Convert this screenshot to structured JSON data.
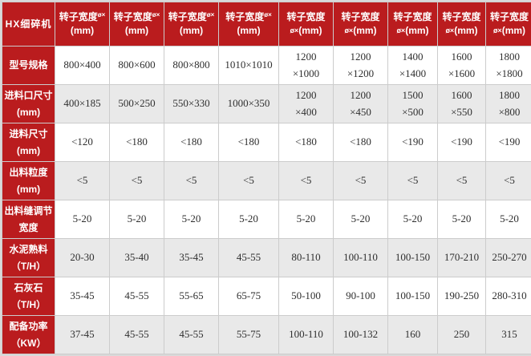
{
  "colors": {
    "header_red": "#ba1c1e",
    "header_text": "#ffffff",
    "row_base": "#ffffff",
    "row_alt": "#e9e9e9",
    "border": "#cccccc",
    "text": "#2f2f2f"
  },
  "table": {
    "corner_label": "HX细碎机",
    "columns": [
      {
        "label": "转子宽度",
        "small": "ø×",
        "unit": "(mm)",
        "variant": "inline"
      },
      {
        "label": "转子宽度",
        "small": "ø×",
        "unit": "(mm)",
        "variant": "inline"
      },
      {
        "label": "转子宽度",
        "small": "ø×",
        "unit": "(mm)",
        "variant": "inline"
      },
      {
        "label": "转子宽度",
        "small": "ø×",
        "unit": "(mm)",
        "variant": "inline"
      },
      {
        "label": "转子宽度",
        "small": "ø×",
        "unit": "(mm)",
        "variant": "stacked"
      },
      {
        "label": "转子宽度",
        "small": "ø×",
        "unit": "(mm)",
        "variant": "stacked"
      },
      {
        "label": "转子宽度",
        "small": "ø×",
        "unit": "(mm)",
        "variant": "stacked"
      },
      {
        "label": "转子宽度",
        "small": "ø×",
        "unit": "(mm)",
        "variant": "stacked"
      },
      {
        "label": "转子宽度",
        "small": "ø×",
        "unit": "(mm)",
        "variant": "stacked"
      }
    ],
    "rows": [
      {
        "label": "型号规格",
        "values": [
          "800×400",
          "800×600",
          "800×800",
          "1010×1010",
          "1200\n×1000",
          "1200\n×1200",
          "1400\n×1400",
          "1600\n×1600",
          "1800\n×1800"
        ]
      },
      {
        "label": "进料口尺寸\n(mm)",
        "values": [
          "400×185",
          "500×250",
          "550×330",
          "1000×350",
          "1200\n×400",
          "1200\n×450",
          "1500\n×500",
          "1600\n×550",
          "1800\n×800"
        ]
      },
      {
        "label": "进料尺寸\n(mm)",
        "values": [
          "<120",
          "<180",
          "<180",
          "<180",
          "<180",
          "<180",
          "<190",
          "<190",
          "<190"
        ]
      },
      {
        "label": "出料粒度\n(mm)",
        "values": [
          "<5",
          "<5",
          "<5",
          "<5",
          "<5",
          "<5",
          "<5",
          "<5",
          "<5"
        ]
      },
      {
        "label": "出料缝调节\n宽度",
        "values": [
          "5-20",
          "5-20",
          "5-20",
          "5-20",
          "5-20",
          "5-20",
          "5-20",
          "5-20",
          "5-20"
        ]
      },
      {
        "label": "水泥熟料\n（T/H）",
        "values": [
          "20-30",
          "35-40",
          "35-45",
          "45-55",
          "80-110",
          "100-110",
          "100-150",
          "170-210",
          "250-270"
        ]
      },
      {
        "label": "石灰石\n（T/H）",
        "values": [
          "35-45",
          "45-55",
          "55-65",
          "65-75",
          "50-100",
          "90-100",
          "100-150",
          "190-250",
          "280-310"
        ]
      },
      {
        "label": "配备功率\n（KW）",
        "values": [
          "37-45",
          "45-55",
          "45-55",
          "55-75",
          "100-110",
          "100-132",
          "160",
          "250",
          "315"
        ]
      }
    ]
  }
}
